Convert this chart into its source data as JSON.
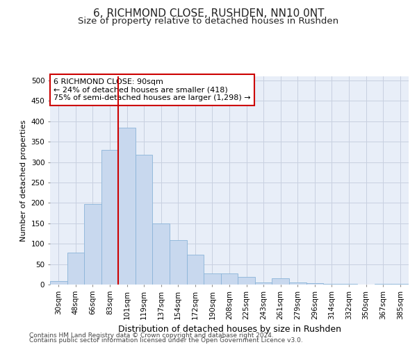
{
  "title": "6, RICHMOND CLOSE, RUSHDEN, NN10 0NT",
  "subtitle": "Size of property relative to detached houses in Rushden",
  "xlabel": "Distribution of detached houses by size in Rushden",
  "ylabel": "Number of detached properties",
  "categories": [
    "30sqm",
    "48sqm",
    "66sqm",
    "83sqm",
    "101sqm",
    "119sqm",
    "137sqm",
    "154sqm",
    "172sqm",
    "190sqm",
    "208sqm",
    "225sqm",
    "243sqm",
    "261sqm",
    "279sqm",
    "296sqm",
    "314sqm",
    "332sqm",
    "350sqm",
    "367sqm",
    "385sqm"
  ],
  "values": [
    8,
    78,
    197,
    330,
    385,
    318,
    150,
    108,
    73,
    28,
    28,
    18,
    5,
    15,
    5,
    4,
    2,
    1,
    0,
    2,
    1
  ],
  "bar_color": "#c8d8ee",
  "bar_edge_color": "#8ab4d8",
  "vline_x_idx": 3.5,
  "vline_color": "#cc0000",
  "annotation_line1": "6 RICHMOND CLOSE: 90sqm",
  "annotation_line2": "← 24% of detached houses are smaller (418)",
  "annotation_line3": "75% of semi-detached houses are larger (1,298) →",
  "annotation_box_facecolor": "#ffffff",
  "annotation_box_edgecolor": "#cc0000",
  "ylim": [
    0,
    510
  ],
  "yticks": [
    0,
    50,
    100,
    150,
    200,
    250,
    300,
    350,
    400,
    450,
    500
  ],
  "plot_bg_color": "#e8eef8",
  "fig_bg_color": "#ffffff",
  "grid_color": "#c8d0e0",
  "footer_line1": "Contains HM Land Registry data © Crown copyright and database right 2024.",
  "footer_line2": "Contains public sector information licensed under the Open Government Licence v3.0.",
  "title_fontsize": 11,
  "subtitle_fontsize": 9.5,
  "xlabel_fontsize": 9,
  "ylabel_fontsize": 8,
  "tick_fontsize": 7.5,
  "annotation_fontsize": 8,
  "footer_fontsize": 6.5
}
